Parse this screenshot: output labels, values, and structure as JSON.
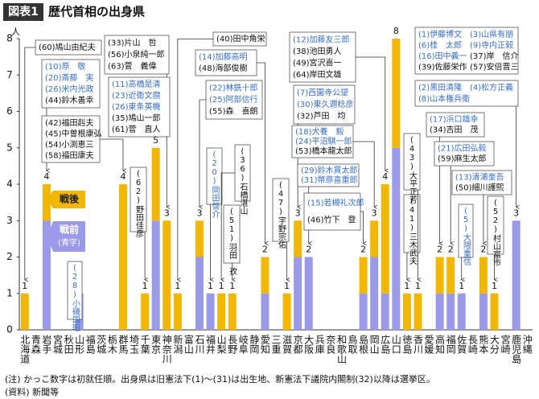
{
  "chart_data": {
    "type": "stacked-bar",
    "title_tag": "図表1",
    "title": "歴代首相の出身県",
    "y_unit": "人",
    "categories": [
      "北海道",
      "青森",
      "岩手",
      "宮城",
      "秋田",
      "山形",
      "福島",
      "茨城",
      "栃木",
      "群馬",
      "埼玉",
      "千葉",
      "東京",
      "神奈川",
      "新潟",
      "富山",
      "石川",
      "福井",
      "山梨",
      "長野",
      "岐阜",
      "静岡",
      "愛知",
      "三重",
      "滋賀",
      "京都",
      "大阪",
      "兵庫",
      "奈良",
      "和歌山",
      "鳥取",
      "島根",
      "岡山",
      "広島",
      "山口",
      "徳島",
      "香川",
      "愛媛",
      "高知",
      "福岡",
      "佐賀",
      "長崎",
      "熊本",
      "大分",
      "宮崎",
      "鹿児島",
      "沖縄"
    ],
    "series": [
      {
        "name": "戦前",
        "note": "(青字)",
        "color": "#9a9ae8",
        "text_color": "#3a6fc4",
        "values": [
          0,
          0,
          3,
          0,
          0,
          1,
          0,
          0,
          0,
          0,
          0,
          0,
          3,
          0,
          0,
          0,
          2,
          1,
          0,
          0,
          0,
          0,
          1,
          0,
          0,
          2,
          2,
          0,
          0,
          0,
          0,
          1,
          2,
          1,
          5,
          0,
          0,
          0,
          1,
          1,
          1,
          0,
          1,
          0,
          0,
          3,
          0
        ]
      },
      {
        "name": "戦後",
        "color": "#f2b705",
        "text_color": "#111111",
        "values": [
          1,
          0,
          1,
          0,
          0,
          0,
          0,
          0,
          0,
          4,
          0,
          1,
          2,
          3,
          1,
          0,
          1,
          0,
          1,
          1,
          0,
          0,
          1,
          0,
          1,
          1,
          0,
          0,
          0,
          0,
          0,
          1,
          1,
          3,
          3,
          1,
          1,
          0,
          1,
          1,
          0,
          0,
          1,
          1,
          0,
          0,
          0
        ]
      }
    ],
    "totals": [
      1,
      null,
      4,
      null,
      null,
      1,
      null,
      null,
      null,
      4,
      null,
      1,
      5,
      3,
      1,
      null,
      3,
      1,
      1,
      1,
      null,
      null,
      2,
      null,
      1,
      3,
      2,
      null,
      null,
      null,
      null,
      2,
      3,
      4,
      8,
      1,
      1,
      null,
      2,
      2,
      1,
      null,
      2,
      1,
      null,
      3,
      null
    ],
    "ylim": [
      0,
      8
    ],
    "yticks": [
      0,
      1,
      2,
      3,
      4,
      5,
      6,
      7,
      8
    ],
    "annotations": [
      {
        "pre": [],
        "post": [
          "(60)鳩山由紀夫"
        ]
      },
      {
        "pre": [
          "(10)原　敬",
          "(20)斎藤　実",
          "(26)米内光政"
        ],
        "post": [
          "(44)鈴木善幸"
        ]
      },
      {
        "pre": [],
        "post": [
          "(42)福田赳夫",
          "(45)中曽根康弘",
          "(54)小渕恵三",
          "(58)福田康夫"
        ]
      },
      {
        "pre": [
          "(28)小磯国昭"
        ],
        "post": []
      },
      {
        "pre": [],
        "post": [
          "(62)野田佳彦"
        ]
      },
      {
        "pre": [],
        "post": [
          "(33)片山　哲",
          "(56)小泉純一郎",
          "(63)菅　義偉"
        ]
      },
      {
        "pre": [
          "(11)高橋是清",
          "(23)近衛文麿",
          "(26)東条英機"
        ],
        "post": [
          "(35)鳩山一郎",
          "(61)菅　直人"
        ]
      },
      {
        "pre": [],
        "post": [
          "(40)田中角栄"
        ]
      },
      {
        "pre": [
          "(14)加藤高明"
        ],
        "post": [
          "(48)海部俊樹"
        ]
      },
      {
        "pre": [
          "(22)林銑十郎",
          "(25)阿部信行"
        ],
        "post": [
          "(55)森　喜朗"
        ]
      },
      {
        "pre": [
          "(20)岡田啓介"
        ],
        "post": []
      },
      {
        "pre": [],
        "post": [
          "(36)石橋湛山"
        ]
      },
      {
        "pre": [],
        "post": [
          "(51)羽田　孜"
        ]
      },
      {
        "pre": [],
        "post": [
          "(47)宇野宗佑"
        ]
      },
      {
        "pre": [
          "(7)西園寺公望",
          "(30)東久邇稔彦"
        ],
        "post": [
          "(32)芦田　均"
        ]
      },
      {
        "pre": [
          "(18)犬養　毅",
          "(24)平沼騏一郎"
        ],
        "post": [
          "(53)橋本龍太郎"
        ]
      },
      {
        "pre": [
          "(29)鈴木貫太郎",
          "(31)幣原喜重郎"
        ],
        "post": []
      },
      {
        "pre": [
          "(15)若槻礼次郎"
        ],
        "post": [
          "(46)竹下　登"
        ]
      },
      {
        "pre": [
          "(12)加藤友三郎"
        ],
        "post": [
          "(38)池田勇人",
          "(49)宮沢喜一",
          "(64)岸田文雄"
        ]
      },
      {
        "pre": [],
        "post": [
          "(41)三木武夫"
        ]
      },
      {
        "pre": [],
        "post": [
          "(43)大平正芳"
        ]
      },
      {
        "pre": [
          "(1)伊藤博文",
          "(3)山県有朋",
          "(6)桂　太郎",
          "(9)寺内正毅",
          "(16)田中義一"
        ],
        "post": [
          "(37)岸　信介",
          "(39)佐藤栄作",
          "(57)安倍晋三"
        ]
      },
      {
        "pre": [
          "(2)黒田清隆",
          "(4)松方正義",
          "(8)山本権兵衛"
        ],
        "post": []
      },
      {
        "pre": [
          "(17)浜口雄幸"
        ],
        "post": [
          "(34)吉田　茂"
        ]
      },
      {
        "pre": [
          "(21)広田弘毅"
        ],
        "post": [
          "(59)麻生太郎"
        ]
      },
      {
        "pre": [
          "(13)清浦奎吾"
        ],
        "post": [
          "(50)細川護熙"
        ]
      },
      {
        "pre": [
          "(5)大隈重信"
        ],
        "post": []
      },
      {
        "pre": [],
        "post": [
          "(52)村山富市"
        ]
      }
    ],
    "notes": [
      "(注) かっこ数字は初就任順。出身県は旧憲法下(1)〜(31)は出生地、新憲法下議院内閣制(32)以降は選挙区。",
      "(資料) 新聞等"
    ]
  }
}
